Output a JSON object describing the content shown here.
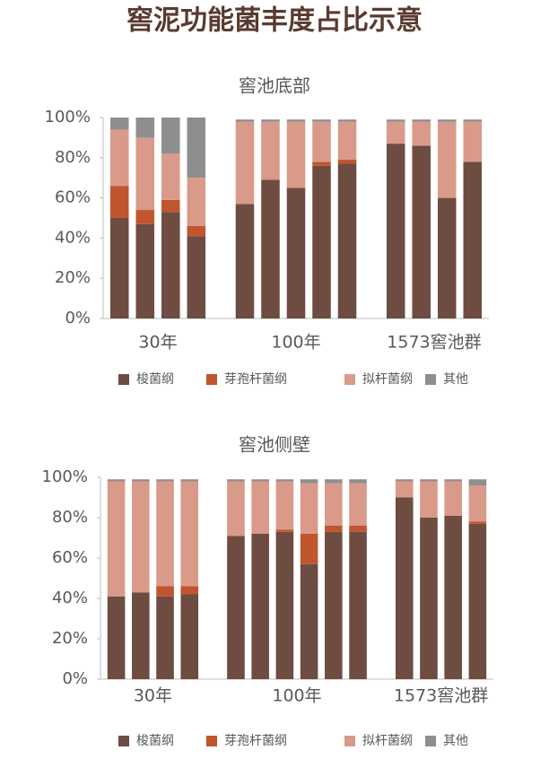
{
  "title": "窖泥功能菌丰度占比示意",
  "chart_data": [
    {
      "type": "stacked_bar",
      "title": "窖池底部",
      "categories": [
        "30年",
        "30年",
        "30年",
        "30年",
        "100年",
        "100年",
        "100年",
        "100年",
        "100年",
        "1573窖池群",
        "1573窖池群",
        "1573窖池群",
        "1573窖池群"
      ],
      "series": [
        {
          "name": "梭菌纲",
          "color": "#6e4c41",
          "values": [
            50,
            47,
            53,
            41,
            57,
            69,
            65,
            76,
            77,
            87,
            86,
            60,
            78
          ]
        },
        {
          "name": "芽孢杆菌纲",
          "color": "#c0552e",
          "values": [
            16,
            7,
            6,
            5,
            0,
            0,
            0,
            2,
            2,
            0,
            0,
            0,
            0
          ]
        },
        {
          "name": "拟杆菌纲",
          "color": "#d99a8a",
          "values": [
            28,
            36,
            23,
            24,
            41,
            29,
            33,
            20,
            19,
            11,
            12,
            38,
            20
          ]
        },
        {
          "name": "其他",
          "color": "#8e8e8e",
          "values": [
            6,
            10,
            18,
            30,
            1,
            1,
            1,
            1,
            1,
            1,
            1,
            1,
            1
          ]
        }
      ],
      "ylim": [
        0,
        100
      ],
      "yticks": [
        {
          "value": 0,
          "label": "0%"
        },
        {
          "value": 20,
          "label": "20%"
        },
        {
          "value": 40,
          "label": "40%"
        },
        {
          "value": 60,
          "label": "60%"
        },
        {
          "value": 80,
          "label": "80%"
        },
        {
          "value": 100,
          "label": "100%"
        }
      ],
      "legend": "bottom"
    },
    {
      "type": "stacked_bar",
      "title": "窖池侧壁",
      "categories": [
        "30年",
        "30年",
        "30年",
        "30年",
        "100年",
        "100年",
        "100年",
        "100年",
        "100年",
        "100年",
        "1573窖池群",
        "1573窖池群",
        "1573窖池群",
        "1573窖池群"
      ],
      "series": [
        {
          "name": "梭菌纲",
          "color": "#6e4c41",
          "values": [
            41,
            43,
            41,
            42,
            71,
            72,
            73,
            57,
            73,
            73,
            90,
            80,
            81,
            77
          ]
        },
        {
          "name": "芽孢杆菌纲",
          "color": "#c0552e",
          "values": [
            0,
            0,
            5,
            4,
            0,
            0,
            1,
            15,
            3,
            3,
            0,
            0,
            0,
            1
          ]
        },
        {
          "name": "拟杆菌纲",
          "color": "#d99a8a",
          "values": [
            57,
            55,
            52,
            52,
            27,
            26,
            24,
            25,
            21,
            21,
            8,
            18,
            17,
            18
          ]
        },
        {
          "name": "其他",
          "color": "#8e8e8e",
          "values": [
            1,
            1,
            1,
            1,
            1,
            1,
            1,
            2,
            2,
            2,
            1,
            1,
            1,
            3
          ]
        }
      ],
      "ylim": [
        0,
        100
      ],
      "yticks": [
        {
          "value": 0,
          "label": "0%"
        },
        {
          "value": 20,
          "label": "20%"
        },
        {
          "value": 40,
          "label": "40%"
        },
        {
          "value": 60,
          "label": "60%"
        },
        {
          "value": 80,
          "label": "80%"
        },
        {
          "value": 100,
          "label": "100%"
        }
      ],
      "legend": "bottom"
    }
  ]
}
